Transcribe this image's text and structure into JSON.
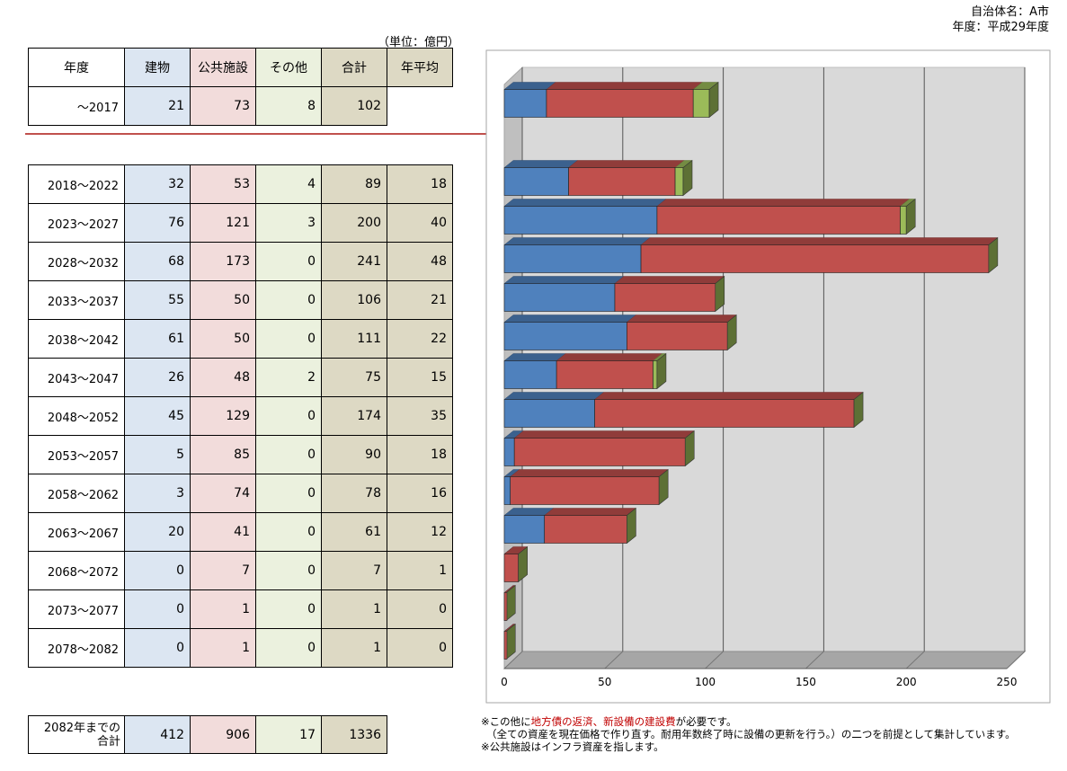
{
  "header": {
    "municipality": "自治体名：A市",
    "fiscal_year": "年度：平成29年度"
  },
  "unit_label": "（単位：億円）",
  "table": {
    "columns": [
      "年度",
      "建物",
      "公共施設",
      "その他",
      "合計",
      "年平均"
    ],
    "past_row": {
      "period": "～2017",
      "building": "21",
      "public": "73",
      "other": "8",
      "total": "102"
    },
    "rows": [
      {
        "period": "2018～2022",
        "building": "32",
        "public": "53",
        "other": "4",
        "total": "89",
        "avg": "18"
      },
      {
        "period": "2023～2027",
        "building": "76",
        "public": "121",
        "other": "3",
        "total": "200",
        "avg": "40"
      },
      {
        "period": "2028～2032",
        "building": "68",
        "public": "173",
        "other": "0",
        "total": "241",
        "avg": "48"
      },
      {
        "period": "2033～2037",
        "building": "55",
        "public": "50",
        "other": "0",
        "total": "106",
        "avg": "21"
      },
      {
        "period": "2038～2042",
        "building": "61",
        "public": "50",
        "other": "0",
        "total": "111",
        "avg": "22"
      },
      {
        "period": "2043～2047",
        "building": "26",
        "public": "48",
        "other": "2",
        "total": "75",
        "avg": "15"
      },
      {
        "period": "2048～2052",
        "building": "45",
        "public": "129",
        "other": "0",
        "total": "174",
        "avg": "35"
      },
      {
        "period": "2053～2057",
        "building": "5",
        "public": "85",
        "other": "0",
        "total": "90",
        "avg": "18"
      },
      {
        "period": "2058～2062",
        "building": "3",
        "public": "74",
        "other": "0",
        "total": "78",
        "avg": "16"
      },
      {
        "period": "2063～2067",
        "building": "20",
        "public": "41",
        "other": "0",
        "total": "61",
        "avg": "12"
      },
      {
        "period": "2068～2072",
        "building": "0",
        "public": "7",
        "other": "0",
        "total": "7",
        "avg": "1"
      },
      {
        "period": "2073～2077",
        "building": "0",
        "public": "1",
        "other": "0",
        "total": "1",
        "avg": "0"
      },
      {
        "period": "2078～2082",
        "building": "0",
        "public": "1",
        "other": "0",
        "total": "1",
        "avg": "0"
      }
    ],
    "total_row": {
      "label_line1": "2082年までの",
      "label_line2": "合計",
      "building": "412",
      "public": "906",
      "other": "17",
      "total": "1336"
    }
  },
  "colors": {
    "building": "#4f81bd",
    "public": "#c0504d",
    "other": "#9bbb59",
    "building_cell": "#dce6f2",
    "public_cell": "#f2dcdb",
    "other_cell": "#ebf1de",
    "total_cell": "#ddd9c4",
    "plot_bg": "#d9d9d9",
    "divider": "#c0504d"
  },
  "chart_data": {
    "type": "bar",
    "orientation": "horizontal",
    "stacked": true,
    "three_d": true,
    "categories": [
      "～2017",
      "2018～2022",
      "2023～2027",
      "2028～2032",
      "2033～2037",
      "2038～2042",
      "2043～2047",
      "2048～2052",
      "2053～2057",
      "2058～2062",
      "2063～2067",
      "2068～2072",
      "2073～2077",
      "2078～2082"
    ],
    "series": [
      {
        "values": [
          21,
          32,
          76,
          68,
          55,
          61,
          26,
          45,
          5,
          3,
          20,
          0,
          0,
          0
        ]
      },
      {
        "values": [
          73,
          53,
          121,
          173,
          50,
          50,
          48,
          129,
          85,
          74,
          41,
          7,
          1,
          1
        ]
      },
      {
        "values": [
          8,
          4,
          3,
          0,
          0,
          0,
          2,
          0,
          0,
          0,
          0,
          0,
          0,
          0
        ]
      }
    ],
    "xlim": [
      0,
      250
    ],
    "xticks": [
      "0",
      "50",
      "100",
      "150",
      "200",
      "250"
    ],
    "grid": true,
    "legend": "none"
  },
  "notes": {
    "line1_a": "※この他に",
    "line1_b": "地方債の返済、新設備の建設費",
    "line1_c": "が必要です。",
    "line2": "（全ての資産を現在価格で作り直す。耐用年数終了時に設備の更新を行う。）の二つを前提として集計しています。",
    "line3": "※公共施設はインフラ資産を指します。"
  }
}
